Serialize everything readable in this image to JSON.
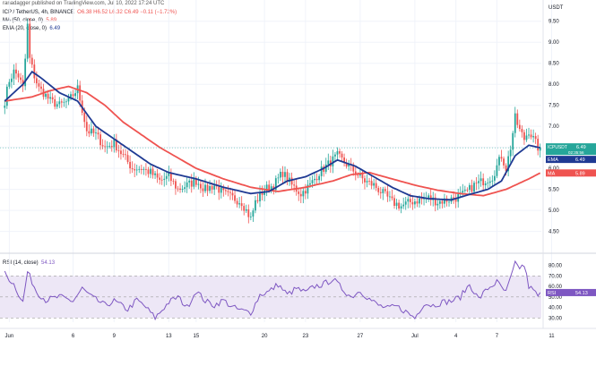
{
  "header": {
    "published": "ranadagger published on TradingView.com, Jul 10, 2022 17:24 UTC",
    "symbol": "ICP / TetherUS, 4h, BINANCE",
    "ohlc": "O6.38  H6.52  L6.32  C6.49  −0.11 (−1.72%)",
    "ma_label": "MA (50, close, 0)",
    "ma_value": "5.89",
    "ema_label": "EMA (20, close, 0)",
    "ema_value": "6.49",
    "rsi_label": "RSI (14, close)",
    "rsi_value": "54.13",
    "currency": "USDT"
  },
  "tags": {
    "price_symbol": "ICPUSDT",
    "price_value": "6.49",
    "price_countdown": "02:35:56",
    "ema_tag": "EMA",
    "ema_value": "6.49",
    "ma_tag": "MA",
    "ma_value": "5.89",
    "rsi_tag": "RSI",
    "rsi_value": "54.13"
  },
  "colors": {
    "up": "#26a69a",
    "down": "#ef5350",
    "ma": "#ef5350",
    "ema": "#1f3a93",
    "rsi": "#7e57c2",
    "rsi_band": "#ede7f6",
    "price_tag": "#26a69a",
    "grid": "#f0f3fa"
  },
  "chart_data": {
    "type": "candlestick",
    "x_ticks": [
      {
        "label": "Jun",
        "i": 2
      },
      {
        "label": "6",
        "i": 30
      },
      {
        "label": "9",
        "i": 48
      },
      {
        "label": "13",
        "i": 72
      },
      {
        "label": "15",
        "i": 84
      },
      {
        "label": "20",
        "i": 114
      },
      {
        "label": "23",
        "i": 132
      },
      {
        "label": "27",
        "i": 156
      },
      {
        "label": "Jul",
        "i": 180
      },
      {
        "label": "4",
        "i": 198
      },
      {
        "label": "7",
        "i": 216
      },
      {
        "label": "11",
        "i": 240
      }
    ],
    "price_axis": {
      "ylim": [
        4.3,
        9.75
      ],
      "ticks": [
        4.5,
        5.0,
        5.5,
        6.0,
        6.5,
        7.0,
        7.5,
        8.0,
        8.5,
        9.0,
        9.5
      ]
    },
    "price_tick_labels": [
      "4.50",
      "5.00",
      "5.50",
      "6.00",
      "6.50",
      "7.00",
      "7.50",
      "8.00",
      "8.50",
      "9.00",
      "9.50"
    ],
    "rsi_axis": {
      "ylim": [
        26,
        83
      ],
      "ticks": [
        30,
        40,
        50,
        60,
        70,
        80
      ],
      "band": [
        30,
        70
      ]
    },
    "rsi_tick_labels": [
      "30.00",
      "40.00",
      "50.00",
      "60.00",
      "70.00",
      "80.00"
    ],
    "close_anchors": [
      [
        0,
        7.6
      ],
      [
        2,
        8.1
      ],
      [
        4,
        8.3
      ],
      [
        6,
        8.2
      ],
      [
        8,
        7.9
      ],
      [
        9,
        8.6
      ],
      [
        10,
        9.4
      ],
      [
        11,
        8.6
      ],
      [
        13,
        8.2
      ],
      [
        15,
        7.9
      ],
      [
        17,
        7.8
      ],
      [
        20,
        7.6
      ],
      [
        24,
        7.5
      ],
      [
        28,
        7.6
      ],
      [
        32,
        7.9
      ],
      [
        34,
        7.4
      ],
      [
        36,
        6.9
      ],
      [
        40,
        6.8
      ],
      [
        44,
        6.5
      ],
      [
        48,
        6.6
      ],
      [
        52,
        6.3
      ],
      [
        56,
        6.0
      ],
      [
        60,
        6.0
      ],
      [
        64,
        5.9
      ],
      [
        68,
        5.7
      ],
      [
        72,
        5.8
      ],
      [
        76,
        5.5
      ],
      [
        80,
        5.6
      ],
      [
        84,
        5.7
      ],
      [
        88,
        5.5
      ],
      [
        92,
        5.6
      ],
      [
        96,
        5.4
      ],
      [
        100,
        5.3
      ],
      [
        104,
        5.2
      ],
      [
        108,
        4.8
      ],
      [
        110,
        5.2
      ],
      [
        114,
        5.5
      ],
      [
        118,
        5.6
      ],
      [
        122,
        5.9
      ],
      [
        126,
        5.6
      ],
      [
        130,
        5.4
      ],
      [
        134,
        5.6
      ],
      [
        138,
        5.9
      ],
      [
        142,
        6.1
      ],
      [
        146,
        6.3
      ],
      [
        150,
        6.1
      ],
      [
        154,
        5.9
      ],
      [
        158,
        5.7
      ],
      [
        162,
        5.6
      ],
      [
        166,
        5.4
      ],
      [
        170,
        5.2
      ],
      [
        174,
        5.1
      ],
      [
        178,
        5.2
      ],
      [
        182,
        5.25
      ],
      [
        186,
        5.3
      ],
      [
        190,
        5.2
      ],
      [
        194,
        5.25
      ],
      [
        198,
        5.3
      ],
      [
        202,
        5.4
      ],
      [
        206,
        5.6
      ],
      [
        210,
        5.7
      ],
      [
        214,
        5.8
      ],
      [
        218,
        6.3
      ],
      [
        220,
        6.0
      ],
      [
        222,
        6.5
      ],
      [
        224,
        7.2
      ],
      [
        226,
        6.9
      ],
      [
        228,
        6.7
      ],
      [
        230,
        6.9
      ],
      [
        232,
        6.7
      ],
      [
        234,
        6.5
      ],
      [
        235,
        6.49
      ]
    ],
    "ema_anchors": [
      [
        0,
        7.6
      ],
      [
        8,
        8.0
      ],
      [
        12,
        8.3
      ],
      [
        16,
        8.15
      ],
      [
        24,
        7.8
      ],
      [
        32,
        7.6
      ],
      [
        40,
        7.0
      ],
      [
        48,
        6.7
      ],
      [
        56,
        6.4
      ],
      [
        64,
        6.1
      ],
      [
        72,
        5.9
      ],
      [
        84,
        5.75
      ],
      [
        96,
        5.55
      ],
      [
        108,
        5.4
      ],
      [
        116,
        5.45
      ],
      [
        124,
        5.7
      ],
      [
        132,
        5.8
      ],
      [
        140,
        6.0
      ],
      [
        146,
        6.2
      ],
      [
        154,
        6.05
      ],
      [
        162,
        5.8
      ],
      [
        170,
        5.55
      ],
      [
        178,
        5.35
      ],
      [
        186,
        5.28
      ],
      [
        196,
        5.25
      ],
      [
        204,
        5.38
      ],
      [
        212,
        5.5
      ],
      [
        218,
        5.7
      ],
      [
        224,
        6.3
      ],
      [
        230,
        6.55
      ],
      [
        235,
        6.49
      ]
    ],
    "ma_anchors": [
      [
        0,
        7.6
      ],
      [
        12,
        7.7
      ],
      [
        20,
        7.85
      ],
      [
        28,
        7.95
      ],
      [
        36,
        7.8
      ],
      [
        44,
        7.5
      ],
      [
        52,
        7.1
      ],
      [
        60,
        6.8
      ],
      [
        68,
        6.5
      ],
      [
        76,
        6.25
      ],
      [
        84,
        6.0
      ],
      [
        96,
        5.75
      ],
      [
        108,
        5.55
      ],
      [
        120,
        5.45
      ],
      [
        132,
        5.55
      ],
      [
        144,
        5.7
      ],
      [
        152,
        5.85
      ],
      [
        160,
        5.9
      ],
      [
        170,
        5.75
      ],
      [
        180,
        5.6
      ],
      [
        190,
        5.48
      ],
      [
        200,
        5.4
      ],
      [
        210,
        5.35
      ],
      [
        220,
        5.5
      ],
      [
        230,
        5.75
      ],
      [
        235,
        5.89
      ]
    ],
    "rsi_anchors": [
      [
        0,
        72
      ],
      [
        4,
        62
      ],
      [
        8,
        45
      ],
      [
        10,
        74
      ],
      [
        14,
        55
      ],
      [
        18,
        47
      ],
      [
        24,
        50
      ],
      [
        30,
        46
      ],
      [
        34,
        58
      ],
      [
        38,
        50
      ],
      [
        44,
        42
      ],
      [
        48,
        46
      ],
      [
        54,
        38
      ],
      [
        58,
        47
      ],
      [
        62,
        40
      ],
      [
        66,
        30
      ],
      [
        72,
        45
      ],
      [
        76,
        50
      ],
      [
        80,
        40
      ],
      [
        84,
        56
      ],
      [
        88,
        46
      ],
      [
        92,
        42
      ],
      [
        96,
        47
      ],
      [
        100,
        40
      ],
      [
        104,
        37
      ],
      [
        108,
        35
      ],
      [
        112,
        52
      ],
      [
        116,
        55
      ],
      [
        120,
        62
      ],
      [
        124,
        52
      ],
      [
        128,
        58
      ],
      [
        132,
        54
      ],
      [
        136,
        60
      ],
      [
        140,
        62
      ],
      [
        144,
        67
      ],
      [
        148,
        58
      ],
      [
        152,
        50
      ],
      [
        156,
        56
      ],
      [
        160,
        48
      ],
      [
        164,
        42
      ],
      [
        168,
        39
      ],
      [
        172,
        41
      ],
      [
        176,
        36
      ],
      [
        180,
        30
      ],
      [
        184,
        44
      ],
      [
        188,
        42
      ],
      [
        192,
        45
      ],
      [
        196,
        46
      ],
      [
        200,
        50
      ],
      [
        204,
        62
      ],
      [
        208,
        48
      ],
      [
        212,
        58
      ],
      [
        216,
        64
      ],
      [
        220,
        54
      ],
      [
        224,
        81
      ],
      [
        226,
        78
      ],
      [
        228,
        80
      ],
      [
        230,
        60
      ],
      [
        232,
        56
      ],
      [
        234,
        51
      ],
      [
        235,
        54.13
      ]
    ],
    "last_close": 6.49,
    "last_ema": 6.49,
    "last_ma": 5.89,
    "last_rsi": 54.13
  }
}
